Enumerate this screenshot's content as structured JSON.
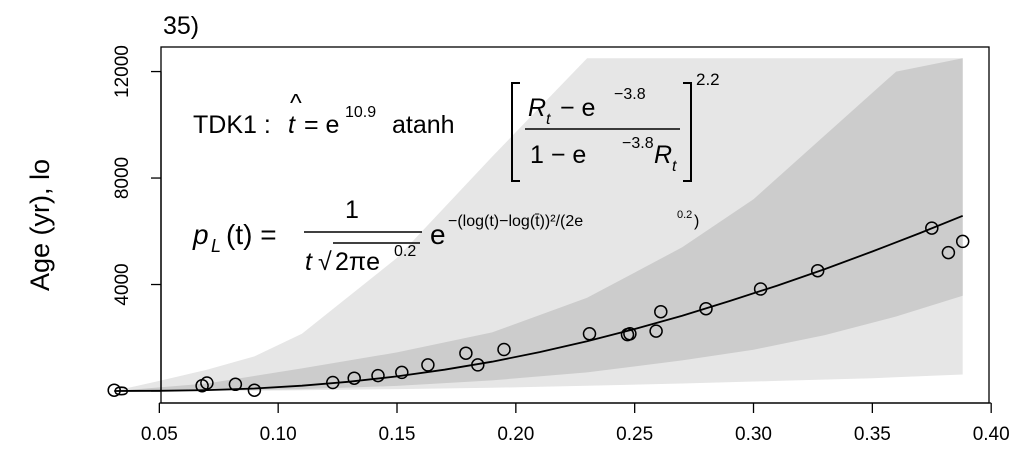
{
  "chart_data": {
    "type": "scatter",
    "title": "35)",
    "ylabel": "Age (yr), lo",
    "xlim": [
      0.025,
      0.4
    ],
    "ylim": [
      0,
      12500
    ],
    "xticks": [
      0.05,
      0.1,
      0.15,
      0.2,
      0.25,
      0.3,
      0.35,
      0.4
    ],
    "xtick_labels": [
      "0.05",
      "0.10",
      "0.15",
      "0.20",
      "0.25",
      "0.30",
      "0.35",
      "0.40"
    ],
    "yticks": [
      0,
      4000,
      8000,
      12000
    ],
    "ytick_labels": [
      "0",
      "4000",
      "8000",
      "12000"
    ],
    "grid": false,
    "points": [
      {
        "x": 0.031,
        "y": 30
      },
      {
        "x": 0.068,
        "y": 200
      },
      {
        "x": 0.07,
        "y": 300
      },
      {
        "x": 0.082,
        "y": 250
      },
      {
        "x": 0.09,
        "y": 30
      },
      {
        "x": 0.123,
        "y": 320
      },
      {
        "x": 0.132,
        "y": 480
      },
      {
        "x": 0.142,
        "y": 580
      },
      {
        "x": 0.152,
        "y": 700
      },
      {
        "x": 0.163,
        "y": 980
      },
      {
        "x": 0.179,
        "y": 1420
      },
      {
        "x": 0.184,
        "y": 980
      },
      {
        "x": 0.195,
        "y": 1560
      },
      {
        "x": 0.231,
        "y": 2150
      },
      {
        "x": 0.247,
        "y": 2120
      },
      {
        "x": 0.248,
        "y": 2150
      },
      {
        "x": 0.259,
        "y": 2250
      },
      {
        "x": 0.261,
        "y": 2980
      },
      {
        "x": 0.28,
        "y": 3090
      },
      {
        "x": 0.303,
        "y": 3830
      },
      {
        "x": 0.327,
        "y": 4520
      },
      {
        "x": 0.375,
        "y": 6120
      },
      {
        "x": 0.382,
        "y": 5200
      },
      {
        "x": 0.388,
        "y": 5620
      }
    ],
    "curve": {
      "x": [
        0.031,
        0.05,
        0.07,
        0.09,
        0.11,
        0.13,
        0.15,
        0.17,
        0.19,
        0.21,
        0.23,
        0.25,
        0.27,
        0.29,
        0.31,
        0.33,
        0.35,
        0.37,
        0.388
      ],
      "y": [
        0,
        8,
        35,
        95,
        200,
        350,
        550,
        800,
        1100,
        1460,
        1870,
        2330,
        2830,
        3380,
        3960,
        4580,
        5240,
        5930,
        6580
      ]
    },
    "band_inner": {
      "x": [
        0.031,
        0.07,
        0.11,
        0.15,
        0.19,
        0.23,
        0.27,
        0.3,
        0.33,
        0.36,
        0.388
      ],
      "lower": [
        0,
        15,
        70,
        190,
        400,
        700,
        1150,
        1550,
        2100,
        2800,
        3580
      ],
      "upper": [
        0,
        280,
        850,
        1450,
        2200,
        3500,
        5400,
        7200,
        9600,
        12000,
        12500
      ]
    },
    "band_outer": {
      "x": [
        0.031,
        0.05,
        0.07,
        0.09,
        0.11,
        0.15,
        0.19,
        0.23,
        0.27,
        0.31,
        0.35,
        0.388
      ],
      "lower": [
        0,
        1,
        4,
        10,
        25,
        70,
        120,
        200,
        280,
        380,
        480,
        620
      ],
      "upper": [
        0,
        380,
        800,
        1300,
        2150,
        5000,
        8800,
        12500,
        12500,
        12500,
        12500,
        12500
      ]
    },
    "annotations": {
      "tdk_label": "TDK1 :",
      "that_sym": "t",
      "hat": "^",
      "eq1_rhs": "= e",
      "exp1": "10.9",
      "atanh": "atanh",
      "num_r": "R",
      "sub_t": "t",
      "num_minus": "− e",
      "exp_neg": "−3.8",
      "den_one": "1 − e",
      "bracket_exp": "2.2",
      "pl_p": "p",
      "pl_sub": "L",
      "pl_arg": "(t) =",
      "frac_num": "1",
      "frac_den_t": "t",
      "sqrt_sym": "√",
      "frac_den_rest": "2πe",
      "exp_02": "0.2",
      "pl_e": "e",
      "pl_exp": "−(log(t)−log(t̄))²/(2e",
      "pl_exp_sup": "0.2",
      "pl_exp_end": ")"
    }
  }
}
